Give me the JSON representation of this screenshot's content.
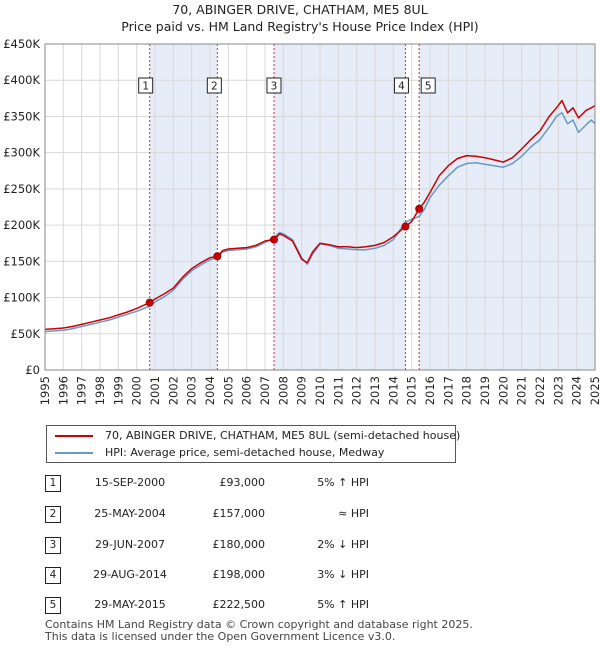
{
  "title_line1": "70, ABINGER DRIVE, CHATHAM, ME5 8UL",
  "title_line2": "Price paid vs. HM Land Registry's House Price Index (HPI)",
  "legend": {
    "property_label": "70, ABINGER DRIVE, CHATHAM, ME5 8UL (semi-detached house)",
    "hpi_label": "HPI: Average price, semi-detached house, Medway"
  },
  "colors": {
    "property": "#cc0000",
    "hpi": "#6699cc",
    "shade": "#dde6f5",
    "grid": "#d9d9d9"
  },
  "transactions": [
    {
      "num": "1",
      "date": "15-SEP-2000",
      "price": "£93,000",
      "hpi": "5% ↑ HPI"
    },
    {
      "num": "2",
      "date": "25-MAY-2004",
      "price": "£157,000",
      "hpi": "≈ HPI"
    },
    {
      "num": "3",
      "date": "29-JUN-2007",
      "price": "£180,000",
      "hpi": "2% ↓ HPI"
    },
    {
      "num": "4",
      "date": "29-AUG-2014",
      "price": "£198,000",
      "hpi": "3% ↓ HPI"
    },
    {
      "num": "5",
      "date": "29-MAY-2015",
      "price": "£222,500",
      "hpi": "5% ↑ HPI"
    }
  ],
  "footer": {
    "line1": "Contains HM Land Registry data © Crown copyright and database right 2025.",
    "line2": "This data is licensed under the Open Government Licence v3.0."
  },
  "chart_data": {
    "type": "line",
    "title": "Price paid vs. HM Land Registry's House Price Index (HPI)",
    "xlim": [
      1995,
      2025
    ],
    "ylim": [
      0,
      450000
    ],
    "x_ticks": [
      "1995",
      "1996",
      "1997",
      "1998",
      "1999",
      "2000",
      "2001",
      "2002",
      "2003",
      "2004",
      "2005",
      "2006",
      "2007",
      "2008",
      "2009",
      "2010",
      "2011",
      "2012",
      "2013",
      "2014",
      "2015",
      "2016",
      "2017",
      "2018",
      "2019",
      "2020",
      "2021",
      "2022",
      "2023",
      "2024",
      "2025"
    ],
    "y_ticks": [
      {
        "value": 0,
        "label": "£0"
      },
      {
        "value": 50000,
        "label": "£50K"
      },
      {
        "value": 100000,
        "label": "£100K"
      },
      {
        "value": 150000,
        "label": "£150K"
      },
      {
        "value": 200000,
        "label": "£200K"
      },
      {
        "value": 250000,
        "label": "£250K"
      },
      {
        "value": 300000,
        "label": "£300K"
      },
      {
        "value": 350000,
        "label": "£350K"
      },
      {
        "value": 400000,
        "label": "£400K"
      },
      {
        "value": 450000,
        "label": "£450K"
      }
    ],
    "series": [
      {
        "name": "70, ABINGER DRIVE, CHATHAM, ME5 8UL (semi-detached house)",
        "color": "#cc0000",
        "x": [
          1995.0,
          1995.5,
          1996.0,
          1996.5,
          1997.0,
          1997.5,
          1998.0,
          1998.5,
          1999.0,
          1999.5,
          2000.0,
          2000.71,
          2001.0,
          2001.5,
          2002.0,
          2002.5,
          2003.0,
          2003.5,
          2004.0,
          2004.4,
          2004.7,
          2005.0,
          2005.5,
          2006.0,
          2006.5,
          2007.0,
          2007.49,
          2007.8,
          2008.0,
          2008.5,
          2009.0,
          2009.3,
          2009.6,
          2010.0,
          2010.5,
          2011.0,
          2011.5,
          2012.0,
          2012.5,
          2013.0,
          2013.5,
          2014.0,
          2014.66,
          2015.0,
          2015.41,
          2015.7,
          2016.0,
          2016.5,
          2017.0,
          2017.5,
          2018.0,
          2018.5,
          2019.0,
          2019.5,
          2020.0,
          2020.5,
          2021.0,
          2021.5,
          2022.0,
          2022.5,
          2022.9,
          2023.2,
          2023.5,
          2023.8,
          2024.1,
          2024.5,
          2024.8,
          2025.0
        ],
        "y": [
          56000,
          57000,
          58000,
          60000,
          63000,
          66000,
          69000,
          72000,
          76000,
          80000,
          85000,
          93000,
          98000,
          105000,
          113000,
          128000,
          140000,
          148000,
          155000,
          157000,
          165000,
          167000,
          168000,
          169000,
          172000,
          178000,
          180000,
          188000,
          186000,
          178000,
          153000,
          148000,
          163000,
          175000,
          173000,
          170000,
          170000,
          169000,
          170000,
          172000,
          176000,
          184000,
          198000,
          205000,
          222500,
          232000,
          245000,
          268000,
          282000,
          292000,
          296000,
          295000,
          293000,
          290000,
          287000,
          293000,
          305000,
          318000,
          330000,
          350000,
          362000,
          372000,
          355000,
          362000,
          348000,
          358000,
          362000,
          365000
        ]
      },
      {
        "name": "HPI: Average price, semi-detached house, Medway",
        "color": "#6699cc",
        "x": [
          1995.0,
          1995.5,
          1996.0,
          1996.5,
          1997.0,
          1997.5,
          1998.0,
          1998.5,
          1999.0,
          1999.5,
          2000.0,
          2000.71,
          2001.0,
          2001.5,
          2002.0,
          2002.5,
          2003.0,
          2003.5,
          2004.0,
          2004.4,
          2004.7,
          2005.0,
          2005.5,
          2006.0,
          2006.5,
          2007.0,
          2007.49,
          2007.8,
          2008.0,
          2008.5,
          2009.0,
          2009.3,
          2009.6,
          2010.0,
          2010.5,
          2011.0,
          2011.5,
          2012.0,
          2012.5,
          2013.0,
          2013.5,
          2014.0,
          2014.66,
          2015.0,
          2015.41,
          2015.7,
          2016.0,
          2016.5,
          2017.0,
          2017.5,
          2018.0,
          2018.5,
          2019.0,
          2019.5,
          2020.0,
          2020.5,
          2021.0,
          2021.5,
          2022.0,
          2022.5,
          2022.9,
          2023.2,
          2023.5,
          2023.8,
          2024.1,
          2024.5,
          2024.8,
          2025.0
        ],
        "y": [
          53000,
          54000,
          55000,
          57000,
          60000,
          63000,
          66000,
          69000,
          73000,
          77000,
          81000,
          88000,
          94000,
          101000,
          110000,
          125000,
          137000,
          145000,
          152000,
          156000,
          163000,
          165000,
          166000,
          167000,
          170000,
          176000,
          183000,
          190000,
          188000,
          180000,
          155000,
          146000,
          160000,
          174000,
          172000,
          168000,
          167000,
          166000,
          166000,
          168000,
          172000,
          180000,
          204000,
          208000,
          212000,
          222000,
          238000,
          255000,
          268000,
          280000,
          285000,
          286000,
          284000,
          282000,
          280000,
          285000,
          295000,
          308000,
          318000,
          335000,
          350000,
          355000,
          340000,
          345000,
          328000,
          338000,
          345000,
          340000
        ]
      }
    ],
    "sale_markers": [
      {
        "label": "1",
        "x": 2000.71,
        "value": 93000
      },
      {
        "label": "2",
        "x": 2004.4,
        "value": 157000
      },
      {
        "label": "3",
        "x": 2007.49,
        "value": 180000
      },
      {
        "label": "4",
        "x": 2014.66,
        "value": 198000
      },
      {
        "label": "5",
        "x": 2015.41,
        "value": 222500
      }
    ]
  }
}
